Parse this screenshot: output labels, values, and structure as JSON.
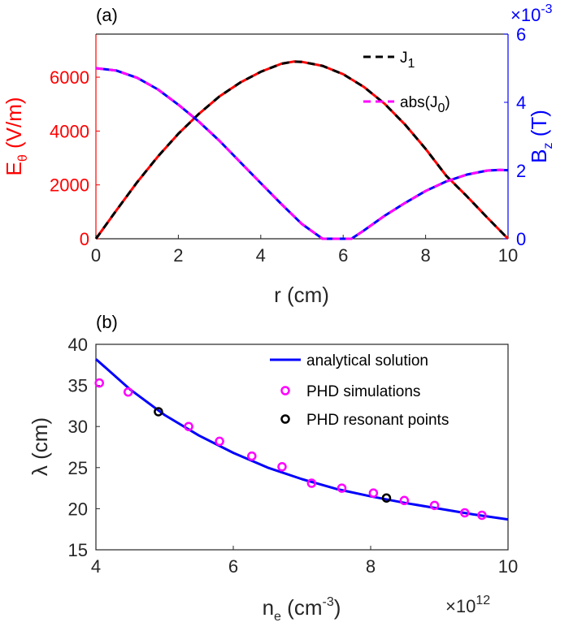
{
  "chart_data": [
    {
      "panel_label": "(a)",
      "type": "line",
      "x_ticks": [
        "0",
        "2",
        "4",
        "6",
        "8",
        "10"
      ],
      "xlabel": "r (cm)",
      "xlim": [
        0,
        10
      ],
      "left_axis": {
        "label_main": "E",
        "label_sub": "θ",
        "label_tail": " (V/m)",
        "ylim": [
          0,
          7600
        ],
        "ticks": [
          0,
          2000,
          4000,
          6000
        ],
        "tick_labels": [
          "0",
          "2000",
          "4000",
          "6000"
        ],
        "color": "#ff0000"
      },
      "right_axis": {
        "label_main": "B",
        "label_sub": "z",
        "label_tail": " (T)",
        "ylim": [
          0,
          6
        ],
        "ticks": [
          0,
          2,
          4,
          6
        ],
        "tick_labels": [
          "0",
          "2",
          "4",
          "6"
        ],
        "exponent_base": "×10",
        "exponent_power": "-3",
        "color": "#0000ff"
      },
      "series": [
        {
          "axis": "left",
          "solid_color": "#ff0000",
          "dash_color": "#000000",
          "x": [
            0,
            0.5,
            1,
            1.5,
            2,
            2.5,
            3,
            3.5,
            4,
            4.5,
            4.8,
            5,
            5.5,
            6,
            6.5,
            7,
            7.5,
            8,
            8.5,
            9,
            9.5,
            10
          ],
          "y": [
            0,
            1060,
            2100,
            3050,
            3900,
            4640,
            5290,
            5800,
            6200,
            6500,
            6580,
            6570,
            6420,
            6110,
            5640,
            5020,
            4240,
            3340,
            2340,
            1580,
            780,
            0
          ]
        },
        {
          "axis": "right",
          "solid_color": "#0000ff",
          "dash_color": "#ff00ff",
          "x": [
            0,
            0.5,
            1,
            1.5,
            2,
            2.5,
            3,
            3.5,
            4,
            4.5,
            5,
            5.5,
            6,
            6.2,
            6.5,
            7,
            7.5,
            8,
            8.5,
            9,
            9.5,
            9.8,
            10
          ],
          "y": [
            5.0,
            4.93,
            4.72,
            4.38,
            3.93,
            3.43,
            2.87,
            2.25,
            1.63,
            1.02,
            0.43,
            0.0,
            0.0,
            0.0,
            0.24,
            0.67,
            1.05,
            1.4,
            1.68,
            1.88,
            2.0,
            2.02,
            2.01
          ]
        }
      ],
      "legend": [
        "J",
        "abs(J",
        ")"
      ],
      "legend_sub": [
        "1",
        "0"
      ]
    },
    {
      "panel_label": "(b)",
      "type": "line+scatter",
      "x_ticks": [
        "4",
        "6",
        "8",
        "10"
      ],
      "x_tick_values": [
        4,
        6,
        8,
        10
      ],
      "xlim": [
        4,
        10
      ],
      "x_exponent_base": "×10",
      "x_exponent_power": "12",
      "xlabel_main": "n",
      "xlabel_sub": "e",
      "xlabel_mid": " (cm",
      "xlabel_sup": "-3",
      "xlabel_tail": ")",
      "ylabel": "λ (cm)",
      "ylim": [
        15,
        40
      ],
      "y_ticks": [
        "15",
        "20",
        "25",
        "30",
        "35",
        "40"
      ],
      "y_tick_values": [
        15,
        20,
        25,
        30,
        35,
        40
      ],
      "analytical": {
        "name": "analytical solution",
        "color": "#0000ff",
        "x": [
          4,
          4.5,
          5,
          5.5,
          6,
          6.5,
          7,
          7.5,
          8,
          8.5,
          9,
          9.5,
          10
        ],
        "y": [
          38.2,
          34.5,
          31.4,
          28.9,
          26.8,
          25.0,
          23.6,
          22.4,
          21.5,
          20.7,
          20.0,
          19.3,
          18.7
        ]
      },
      "simulations": {
        "name": "PHD simulations",
        "color": "#ff00ff",
        "x": [
          4.05,
          4.47,
          5.35,
          5.8,
          6.27,
          6.71,
          7.14,
          7.58,
          8.04,
          8.49,
          8.93,
          9.37,
          9.62
        ],
        "y": [
          35.3,
          34.2,
          30.0,
          28.2,
          26.4,
          25.1,
          23.1,
          22.5,
          21.9,
          21.0,
          20.4,
          19.5,
          19.2
        ]
      },
      "resonant": {
        "name": "PHD resonant points",
        "color": "#000000",
        "x": [
          4.91,
          8.23
        ],
        "y": [
          31.8,
          21.3
        ]
      }
    }
  ]
}
